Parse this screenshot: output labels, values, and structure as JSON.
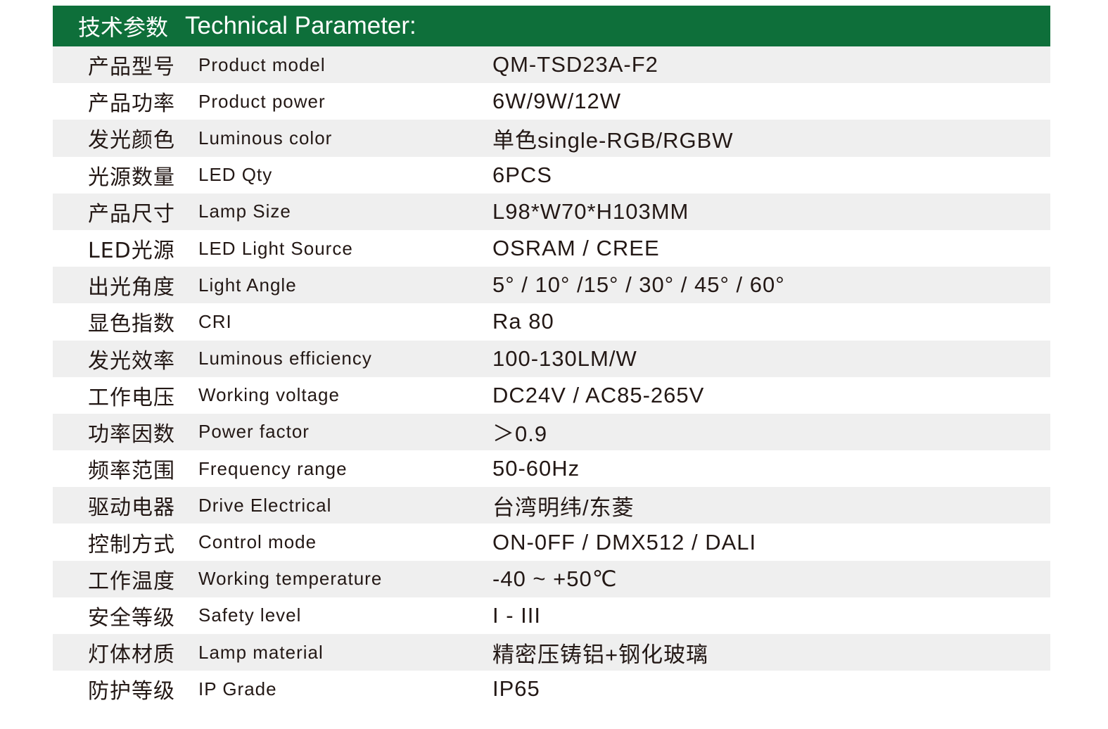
{
  "header": {
    "title_cn": "技术参数",
    "title_en": "Technical Parameter:"
  },
  "colors": {
    "header_bg": "#0e6f3a",
    "stripe": "#efefef",
    "text": "#231815"
  },
  "rows": [
    {
      "cn": "产品型号",
      "en": "Product model",
      "value": "QM-TSD23A-F2"
    },
    {
      "cn": "产品功率",
      "en": "Product power",
      "value": "6W/9W/12W"
    },
    {
      "cn": "发光颜色",
      "en": "Luminous color",
      "value": "单色single-RGB/RGBW"
    },
    {
      "cn": "光源数量",
      "en": "LED Qty",
      "value": "6PCS"
    },
    {
      "cn": "产品尺寸",
      "en": "Lamp Size",
      "value": "L98*W70*H103MM"
    },
    {
      "cn": "LED光源",
      "en": "LED Light Source",
      "value": "OSRAM / CREE"
    },
    {
      "cn": "出光角度",
      "en": "Light Angle",
      "value": "5° / 10° /15° / 30° / 45° / 60°"
    },
    {
      "cn": "显色指数",
      "en": "CRI",
      "value": "Ra 80"
    },
    {
      "cn": "发光效率",
      "en": "Luminous efficiency",
      "value": "100-130LM/W"
    },
    {
      "cn": "工作电压",
      "en": "Working voltage",
      "value": "DC24V / AC85-265V"
    },
    {
      "cn": "功率因数",
      "en": "Power factor",
      "value": "＞0.9"
    },
    {
      "cn": "频率范围",
      "en": "Frequency range",
      "value": "50-60Hz"
    },
    {
      "cn": "驱动电器",
      "en": "Drive Electrical",
      "value": "台湾明纬/东菱"
    },
    {
      "cn": "控制方式",
      "en": "Control mode",
      "value": "ON-0FF / DMX512 / DALI"
    },
    {
      "cn": "工作温度",
      "en": "Working temperature",
      "value": "-40 ~ +50℃"
    },
    {
      "cn": "安全等级",
      "en": "Safety level",
      "value": "I - III"
    },
    {
      "cn": "灯体材质",
      "en": "Lamp material",
      "value": "精密压铸铝+钢化玻璃"
    },
    {
      "cn": "防护等级",
      "en": "IP Grade",
      "value": "IP65"
    }
  ]
}
